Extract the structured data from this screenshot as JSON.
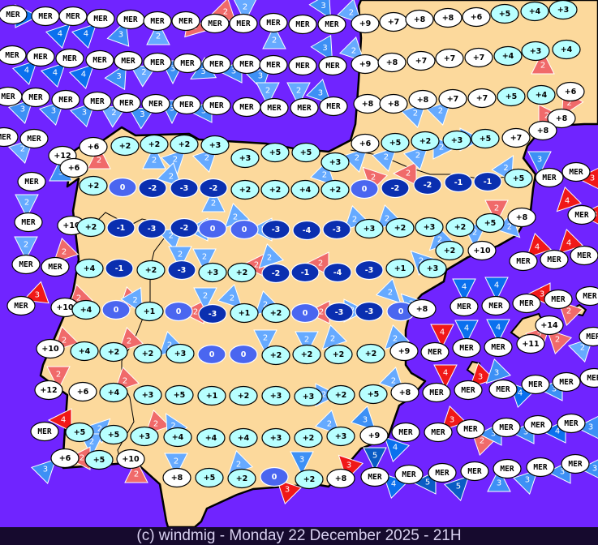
{
  "footer": "(c) windmig - Monday 22 December 2025 - 21H",
  "colors": {
    "sea": "#7024ff",
    "land": "#fcd99c",
    "coast": "#000000",
    "temp_warm": "#ffffff",
    "temp_mild": "#b8ffff",
    "temp_zero": "#4a66f0",
    "temp_negative": "#0a2fb0",
    "wind": {
      "L": "#66aaff",
      "M": "#3d90f5",
      "S": "#0a70ee",
      "D": "#0a5cc4",
      "P": "#f06a6a",
      "R": "#f01818"
    }
  },
  "stations": [
    "MER",
    "MER",
    "MER",
    "MER",
    "MER",
    "MER",
    "MER",
    "MER",
    "MER",
    "MER",
    "MER",
    "MER",
    "+9",
    "+7",
    "+8",
    "+8",
    "+6",
    "+5",
    "+4",
    "+3",
    "MER",
    "MER",
    "MER",
    "MER",
    "MER",
    "MER",
    "MER",
    "MER",
    "MER",
    "MER",
    "MER",
    "MER",
    "+9",
    "+8",
    "+7",
    "+7",
    "+7",
    "+4",
    "+3",
    "+4",
    "MER",
    "MER",
    "MER",
    "MER",
    "MER",
    "MER",
    "MER",
    "MER",
    "MER",
    "MER",
    "MER",
    "MER",
    "+8",
    "+8",
    "+8",
    "+7",
    "+7",
    "+5",
    "+4",
    "+6",
    "+8",
    "+8",
    "MER",
    "MER",
    "+12",
    "+6",
    "+6",
    "+2",
    "+2",
    "+2",
    "+3",
    "+3",
    "+5",
    "+5",
    "+3",
    "+6",
    "+5",
    "+2",
    "+3",
    "+5",
    "+7",
    "+5",
    "MER",
    "MER",
    "MER",
    "+2",
    "0",
    "-2",
    "-3",
    "-2",
    "+2",
    "+2",
    "+4",
    "+2",
    "0",
    "-2",
    "-2",
    "-1",
    "-1",
    "MER",
    "+10",
    "+2",
    "-1",
    "-3",
    "-2",
    "0",
    "0",
    "-3",
    "-4",
    "-3",
    "+3",
    "+2",
    "+3",
    "+2",
    "+5",
    "+8",
    "MER",
    "MER",
    "MER",
    "+4",
    "-1",
    "+2",
    "-3",
    "+3",
    "+2",
    "-2",
    "-1",
    "-4",
    "-3",
    "+1",
    "+3",
    "+2",
    "+10",
    "MER",
    "MER",
    "MER",
    "MER",
    "+10",
    "+4",
    "0",
    "+1",
    "0",
    "-3",
    "+1",
    "+2",
    "0",
    "-3",
    "-3",
    "0",
    "+8",
    "MER",
    "MER",
    "MER",
    "MER",
    "MER",
    "+10",
    "+4",
    "+2",
    "+2",
    "+3",
    "0",
    "0",
    "+2",
    "+2",
    "+2",
    "+2",
    "+9",
    "MER",
    "MER",
    "MER",
    "+14",
    "+11",
    "MER",
    "+12",
    "+6",
    "+4",
    "+3",
    "+5",
    "+1",
    "+2",
    "+3",
    "+3",
    "+2",
    "+5",
    "+8",
    "MER",
    "MER",
    "MER",
    "MER",
    "MER",
    "MER",
    "MER",
    "+5",
    "+5",
    "+3",
    "+4",
    "+4",
    "+4",
    "+3",
    "+2",
    "+3",
    "+9",
    "MER",
    "MER",
    "MER",
    "MER",
    "MER",
    "MER",
    "+6",
    "+5",
    "+10",
    "+8",
    "+5",
    "+2",
    "0",
    "+2",
    "+8",
    "MER",
    "MER",
    "MER",
    "MER",
    "MER",
    "MER",
    "MER"
  ],
  "winds": [
    {
      "speed": "4",
      "type": "S"
    },
    {
      "speed": "4",
      "type": "S"
    },
    {
      "speed": "4",
      "type": "S"
    },
    {
      "speed": "3",
      "type": "M"
    },
    {
      "speed": "2",
      "type": "L"
    },
    {
      "speed": "2",
      "type": "P"
    },
    {
      "speed": "2",
      "type": "P"
    },
    {
      "speed": "2",
      "type": "L"
    },
    {
      "speed": "2",
      "type": "L"
    },
    {
      "speed": "3",
      "type": "M"
    },
    {
      "speed": "2",
      "type": "L"
    },
    {
      "speed": "4",
      "type": "S"
    },
    {
      "speed": "4",
      "type": "S"
    },
    {
      "speed": "4",
      "type": "S"
    },
    {
      "speed": "3",
      "type": "M"
    },
    {
      "speed": "2",
      "type": "L"
    },
    {
      "speed": "3",
      "type": "M"
    },
    {
      "speed": "3",
      "type": "M"
    },
    {
      "speed": "3",
      "type": "M"
    },
    {
      "speed": "3",
      "type": "M"
    },
    {
      "speed": "3",
      "type": "M"
    },
    {
      "speed": "2",
      "type": "L"
    },
    {
      "speed": "3",
      "type": "M"
    },
    {
      "speed": "3",
      "type": "M"
    },
    {
      "speed": "3",
      "type": "M"
    },
    {
      "speed": "2",
      "type": "L"
    },
    {
      "speed": "3",
      "type": "M"
    },
    {
      "speed": "3",
      "type": "M"
    },
    {
      "speed": "3",
      "type": "M"
    },
    {
      "speed": "2",
      "type": "L"
    },
    {
      "speed": "2",
      "type": "L"
    },
    {
      "speed": "3",
      "type": "M"
    },
    {
      "speed": "2",
      "type": "L"
    },
    {
      "speed": "2",
      "type": "L"
    },
    {
      "speed": "2",
      "type": "P"
    },
    {
      "speed": "2",
      "type": "P"
    },
    {
      "speed": "2",
      "type": "P"
    },
    {
      "speed": "2",
      "type": "L"
    },
    {
      "speed": "2",
      "type": "P"
    },
    {
      "speed": "3",
      "type": "M"
    },
    {
      "speed": "2",
      "type": "L"
    },
    {
      "speed": "2",
      "type": "L"
    },
    {
      "speed": "2",
      "type": "L"
    },
    {
      "speed": "2",
      "type": "L"
    },
    {
      "speed": "2",
      "type": "L"
    },
    {
      "speed": "2",
      "type": "L"
    },
    {
      "speed": "2",
      "type": "L"
    },
    {
      "speed": "2",
      "type": "L"
    },
    {
      "speed": "2",
      "type": "P"
    },
    {
      "speed": "2",
      "type": "P"
    },
    {
      "speed": "2",
      "type": "L"
    },
    {
      "speed": "2",
      "type": "L"
    },
    {
      "speed": "2",
      "type": "L"
    },
    {
      "speed": "2",
      "type": "L"
    },
    {
      "speed": "3",
      "type": "M"
    },
    {
      "speed": "3",
      "type": "R"
    },
    {
      "speed": "2",
      "type": "L"
    },
    {
      "speed": "2",
      "type": "L"
    },
    {
      "speed": "2",
      "type": "P"
    },
    {
      "speed": "2",
      "type": "L"
    },
    {
      "speed": "2",
      "type": "L"
    },
    {
      "speed": "2",
      "type": "L"
    },
    {
      "speed": "2",
      "type": "L"
    },
    {
      "speed": "2",
      "type": "L"
    },
    {
      "speed": "2",
      "type": "L"
    },
    {
      "speed": "2",
      "type": "L"
    },
    {
      "speed": "2",
      "type": "L"
    },
    {
      "speed": "2",
      "type": "P"
    },
    {
      "speed": "2",
      "type": "L"
    },
    {
      "speed": "2",
      "type": "P"
    },
    {
      "speed": "2",
      "type": "L"
    },
    {
      "speed": "2",
      "type": "L"
    },
    {
      "speed": "2",
      "type": "P"
    },
    {
      "speed": "2",
      "type": "L"
    },
    {
      "speed": "2",
      "type": "L"
    },
    {
      "speed": "4",
      "type": "R"
    },
    {
      "speed": "4",
      "type": "R"
    },
    {
      "speed": "4",
      "type": "R"
    },
    {
      "speed": "3",
      "type": "R"
    },
    {
      "speed": "3",
      "type": "R"
    },
    {
      "speed": "2",
      "type": "P"
    },
    {
      "speed": "2",
      "type": "P"
    },
    {
      "speed": "2",
      "type": "L"
    },
    {
      "speed": "2",
      "type": "P"
    },
    {
      "speed": "2",
      "type": "L"
    },
    {
      "speed": "2",
      "type": "L"
    },
    {
      "speed": "2",
      "type": "L"
    },
    {
      "speed": "2",
      "type": "P"
    },
    {
      "speed": "2",
      "type": "L"
    },
    {
      "speed": "2",
      "type": "L"
    },
    {
      "speed": "2",
      "type": "L"
    },
    {
      "speed": "4",
      "type": "S"
    },
    {
      "speed": "4",
      "type": "S"
    },
    {
      "speed": "3",
      "type": "R"
    },
    {
      "speed": "2",
      "type": "P"
    },
    {
      "speed": "2",
      "type": "P"
    },
    {
      "speed": "2",
      "type": "P"
    },
    {
      "speed": "2",
      "type": "L"
    },
    {
      "speed": "2",
      "type": "L"
    },
    {
      "speed": "2",
      "type": "L"
    },
    {
      "speed": "2",
      "type": "L"
    },
    {
      "speed": "2",
      "type": "L"
    },
    {
      "speed": "4",
      "type": "R"
    },
    {
      "speed": "4",
      "type": "S"
    },
    {
      "speed": "4",
      "type": "S"
    },
    {
      "speed": "2",
      "type": "P"
    },
    {
      "speed": "2",
      "type": "P"
    },
    {
      "speed": "2",
      "type": "L"
    },
    {
      "speed": "2",
      "type": "P"
    },
    {
      "speed": "2",
      "type": "P"
    },
    {
      "speed": "2",
      "type": "L"
    },
    {
      "speed": "2",
      "type": "L"
    },
    {
      "speed": "4",
      "type": "R"
    },
    {
      "speed": "2",
      "type": "P"
    },
    {
      "speed": "2",
      "type": "L"
    },
    {
      "speed": "3",
      "type": "M"
    },
    {
      "speed": "2",
      "type": "P"
    },
    {
      "speed": "2",
      "type": "P"
    },
    {
      "speed": "2",
      "type": "L"
    },
    {
      "speed": "2",
      "type": "L"
    },
    {
      "speed": "2",
      "type": "L"
    },
    {
      "speed": "2",
      "type": "L"
    },
    {
      "speed": "3",
      "type": "M"
    },
    {
      "speed": "3",
      "type": "M"
    },
    {
      "speed": "3",
      "type": "R"
    },
    {
      "speed": "3",
      "type": "R"
    },
    {
      "speed": "5",
      "type": "D"
    },
    {
      "speed": "4",
      "type": "S"
    },
    {
      "speed": "4",
      "type": "S"
    },
    {
      "speed": "2",
      "type": "L"
    },
    {
      "speed": "4",
      "type": "R"
    },
    {
      "speed": "3",
      "type": "R"
    },
    {
      "speed": "3",
      "type": "M"
    },
    {
      "speed": "4",
      "type": "S"
    },
    {
      "speed": "3",
      "type": "M"
    },
    {
      "speed": "3",
      "type": "R"
    },
    {
      "speed": "2",
      "type": "P"
    },
    {
      "speed": "3",
      "type": "M"
    },
    {
      "speed": "3",
      "type": "M"
    },
    {
      "speed": "4",
      "type": "S"
    },
    {
      "speed": "3",
      "type": "M"
    },
    {
      "speed": "5",
      "type": "D"
    },
    {
      "speed": "5",
      "type": "D"
    },
    {
      "speed": "3",
      "type": "M"
    },
    {
      "speed": "3",
      "type": "M"
    },
    {
      "speed": "3",
      "type": "M"
    },
    {
      "speed": "3",
      "type": "M"
    }
  ]
}
